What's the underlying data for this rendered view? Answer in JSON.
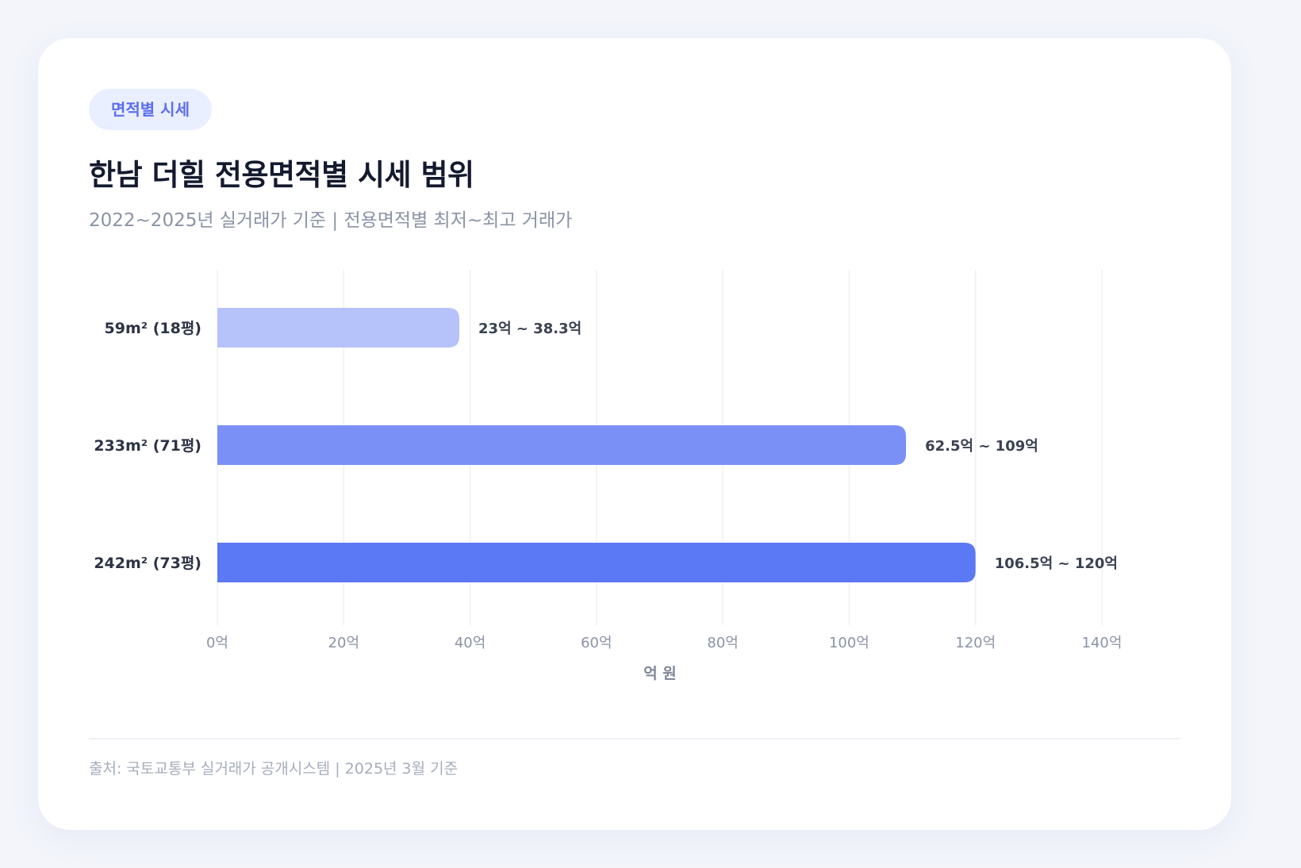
{
  "badge": "면적별 시세",
  "title": "한남 더힐 전용면적별 시세 범위",
  "subtitle": "2022~2025년 실거래가 기준 | 전용면적별 최저~최고 거래가",
  "source": "출처: 국토교통부 실거래가 공개시스템 | 2025년 3월 기준",
  "chart_data": {
    "type": "bar",
    "orientation": "horizontal",
    "categories": [
      "59m² (18평)",
      "233m² (71평)",
      "242m² (73평)"
    ],
    "values": [
      38.3,
      109,
      120
    ],
    "ranges": [
      {
        "min": 23,
        "max": 38.3
      },
      {
        "min": 62.5,
        "max": 109
      },
      {
        "min": 106.5,
        "max": 120
      }
    ],
    "value_labels": [
      "23억 ~ 38.3억",
      "62.5억 ~ 109억",
      "106.5억 ~ 120억"
    ],
    "bar_colors": [
      "#b6c2fa",
      "#7b90f6",
      "#5b78f5"
    ],
    "xlim": [
      0,
      140
    ],
    "xticks": [
      0,
      20,
      40,
      60,
      80,
      100,
      120,
      140
    ],
    "xtick_labels": [
      "0억",
      "20억",
      "40억",
      "60억",
      "80억",
      "100억",
      "120억",
      "140억"
    ],
    "xlabel": "억 원",
    "ylabel": "",
    "grid": true,
    "legend": "none"
  }
}
